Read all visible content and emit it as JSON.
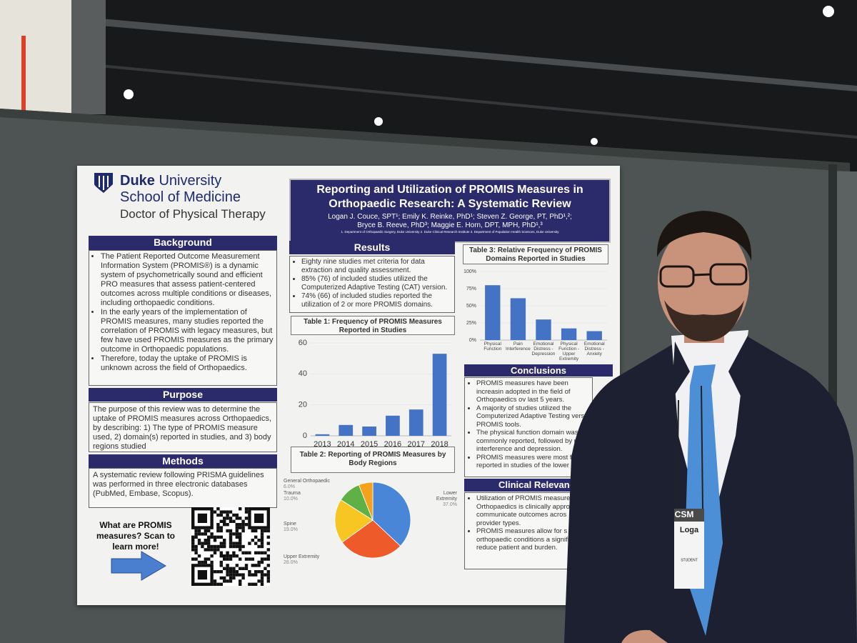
{
  "logo": {
    "bold": "Duke",
    "name": "University",
    "school": "School of Medicine",
    "program": "Doctor of Physical Therapy"
  },
  "poster": {
    "title": "Reporting and Utilization of PROMIS Measures in Orthopaedic Research: A Systematic Review",
    "authors": [
      "Logan J. Couce, SPT¹; Emily K. Reinke, PhD¹; Steven Z. George, PT, PhD¹,²;",
      "Bryce B. Reeve, PhD³; Maggie E. Horn, DPT, MPH, PhD¹,³"
    ],
    "affiliations": "1. Department of Orthopaedic Surgery, Duke University  2. Duke Clinical Research Institute  3. Department of Population Health Sciences, Duke University",
    "background": {
      "heading": "Background",
      "bullets": [
        "The Patient Reported Outcome Measurement Information System (PROMIS®) is a dynamic system of psychometrically sound and efficient PRO measures that assess patient-centered outcomes across multiple conditions or diseases, including orthopaedic conditions.",
        "In the early years of the implementation of PROMIS measures, many studies reported the correlation of PROMIS with legacy measures, but few have used PROMIS measures as the primary outcome in Orthopaedic populations.",
        "Therefore, today the uptake of PROMIS is unknown across the field of Orthopaedics."
      ]
    },
    "purpose": {
      "heading": "Purpose",
      "text": "The purpose of this review was to determine the uptake of PROMIS measures across Orthopaedics, by describing: 1) The type of PROMIS measure used, 2) domain(s) reported in studies, and 3) body regions studied"
    },
    "methods": {
      "heading": "Methods",
      "text": "A systematic review following PRISMA guidelines was performed in three electronic databases (PubMed, Embase, Scopus)."
    },
    "qr_prompt": "What are PROMIS measures? Scan to learn more!",
    "results": {
      "heading": "Results",
      "bullets": [
        "Eighty nine studies met criteria for data extraction and quality assessment.",
        "85% (76) of included studies utilized the Computerized Adaptive Testing (CAT) version.",
        "74% (66) of included studies reported the utilization of 2 or more PROMIS domains."
      ]
    },
    "conclusions": {
      "heading": "Conclusions",
      "bullets": [
        "PROMIS measures have been increasin adopted in the field of Orthopaedics ov last 5 years.",
        "A majority of studies utilized the Computerized Adaptive Testing vers PROMIS tools.",
        "The physical function domain was commonly reported, followed by p interference and depression.",
        "PROMIS measures were most fr reported in studies of the lower e"
      ]
    },
    "clinical_relevance": {
      "heading": "Clinical Relevanc",
      "bullets": [
        "Utilization of PROMIS measure Orthopaedics is clinically appro communicate outcomes acros provider types.",
        "PROMIS measures allow for s across orthopaedic conditions a significantly reduce patient and burden."
      ]
    }
  },
  "badge": {
    "event": "CSM",
    "name": "Loga",
    "role": "STUDENT"
  },
  "chart_data": [
    {
      "type": "bar",
      "title": "Table 1: Frequency of PROMIS Measures Reported in Studies",
      "categories": [
        "2013",
        "2014",
        "2015",
        "2016",
        "2017",
        "2018"
      ],
      "values": [
        1,
        7,
        6,
        13,
        17,
        53
      ],
      "color": "#4472c4",
      "ylim": [
        0,
        60
      ],
      "yticks": [
        0,
        20,
        40,
        60
      ]
    },
    {
      "type": "pie",
      "title": "Table 2: Reporting of PROMIS Measures by Body Regions",
      "categories": [
        "Lower Extremity",
        "Upper Extremity",
        "Spine",
        "Trauma",
        "General Orthopaedic"
      ],
      "values": [
        37,
        28,
        19,
        10,
        6
      ],
      "value_labels": [
        "37.0%",
        "28.0%",
        "19.0%",
        "10.0%",
        "6.0%"
      ],
      "colors": [
        "#4a86d8",
        "#ef5a2a",
        "#f7c623",
        "#5fb045",
        "#f5a11c"
      ]
    },
    {
      "type": "bar",
      "title": "Table 3: Relative Frequency of PROMIS Domains Reported in Studies",
      "categories": [
        "Physical Function",
        "Pain Interference",
        "Emotional Distress - Depression",
        "Physical Function - Upper Extremity",
        "Emotional Distress - Anxiety"
      ],
      "values": [
        80,
        61,
        30,
        17,
        13
      ],
      "color": "#4472c4",
      "ylim": [
        0,
        100
      ],
      "yticks": [
        {
          "value": 0,
          "label": "0%"
        },
        {
          "value": 25,
          "label": "25%"
        },
        {
          "value": 50,
          "label": "50%"
        },
        {
          "value": 75,
          "label": "75%"
        },
        {
          "value": 100,
          "label": "100%"
        }
      ]
    }
  ]
}
